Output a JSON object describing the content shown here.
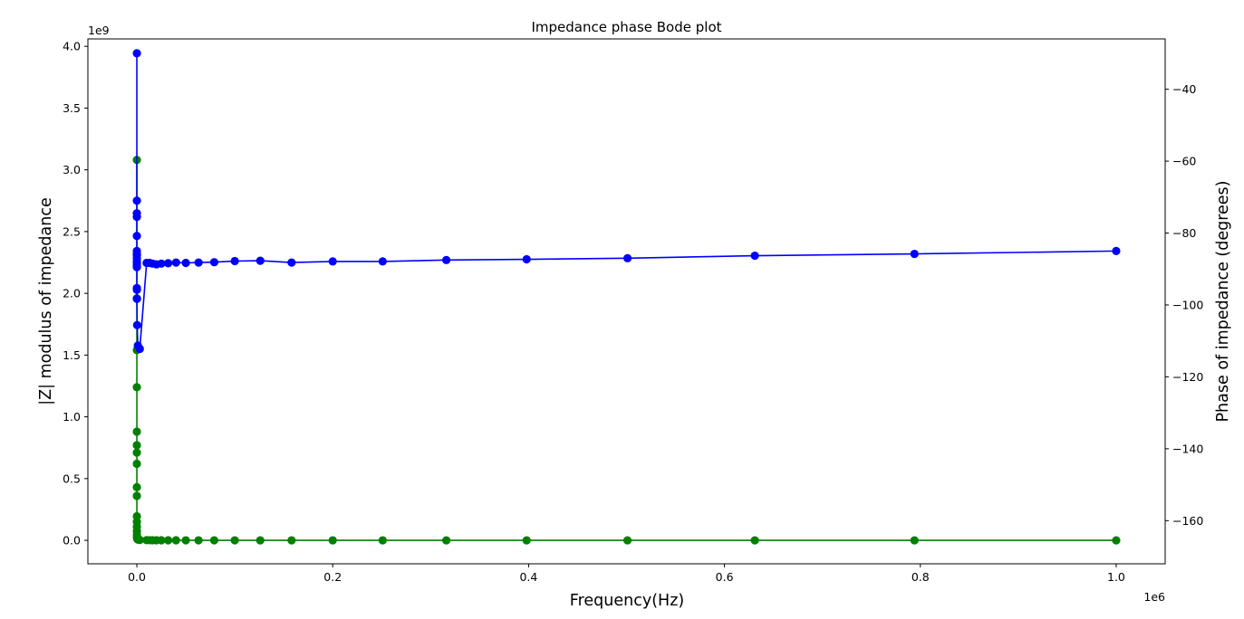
{
  "chart_data": {
    "type": "line",
    "title": "Impedance phase Bode plot",
    "xlabel": "Frequency(Hz)",
    "x_offset_text": "1e6",
    "x_scale": 1000000,
    "xlim": [
      -50000,
      1050000
    ],
    "xticks": [
      0,
      200000,
      400000,
      600000,
      800000,
      1000000
    ],
    "xtick_labels": [
      "0.0",
      "0.2",
      "0.4",
      "0.6",
      "0.8",
      "1.0"
    ],
    "y_left": {
      "label": "|Z| modulus of impedance",
      "offset_text": "1e9",
      "scale": 1000000000,
      "lim": [
        -190000000,
        4060000000
      ],
      "ticks": [
        0,
        500000000,
        1000000000,
        1500000000,
        2000000000,
        2500000000,
        3000000000,
        3500000000,
        4000000000
      ],
      "tick_labels": [
        "0.0",
        "0.5",
        "1.0",
        "1.5",
        "2.0",
        "2.5",
        "3.0",
        "3.5",
        "4.0"
      ]
    },
    "y_right": {
      "label": "Phase of impedance (degrees)",
      "lim": [
        -172,
        -26
      ],
      "ticks": [
        -160,
        -140,
        -120,
        -100,
        -80,
        -60,
        -40
      ],
      "tick_labels": [
        "−160",
        "−140",
        "−120",
        "−100",
        "−80",
        "−60",
        "−40"
      ]
    },
    "grid": false,
    "series": [
      {
        "axis": "left",
        "color": "#008000",
        "marker": "circle",
        "points": [
          [
            1,
            3080000000
          ],
          [
            2,
            1960000000
          ],
          [
            3,
            1540000000
          ],
          [
            4,
            1240000000
          ],
          [
            5,
            880000000
          ],
          [
            6,
            770000000
          ],
          [
            7,
            710000000
          ],
          [
            8,
            620000000
          ],
          [
            9,
            430000000
          ],
          [
            10,
            360000000
          ],
          [
            12,
            195000000
          ],
          [
            15,
            150000000
          ],
          [
            20,
            110000000
          ],
          [
            30,
            75000000
          ],
          [
            50,
            45000000
          ],
          [
            100,
            25000000
          ],
          [
            300,
            12000000
          ],
          [
            1000,
            6000000
          ],
          [
            3000,
            3000000
          ],
          [
            10000,
            1500000
          ],
          [
            13000,
            1000000
          ],
          [
            16000,
            800000
          ],
          [
            20000,
            600000
          ],
          [
            25000,
            500000
          ],
          [
            32000,
            400000
          ],
          [
            40000,
            300000
          ],
          [
            50000,
            250000
          ],
          [
            63000,
            200000
          ],
          [
            79000,
            160000
          ],
          [
            100000,
            130000
          ],
          [
            126000,
            100000
          ],
          [
            158000,
            80000
          ],
          [
            200000,
            64000
          ],
          [
            251000,
            51000
          ],
          [
            316000,
            40000
          ],
          [
            398000,
            32000
          ],
          [
            501000,
            25000
          ],
          [
            631000,
            20000
          ],
          [
            794000,
            16000
          ],
          [
            1000000,
            12600
          ]
        ]
      },
      {
        "axis": "right",
        "color": "#0000ff",
        "marker": "circle",
        "points": [
          [
            1,
            -30
          ],
          [
            2,
            -71
          ],
          [
            3,
            -74.5
          ],
          [
            4,
            -75.5
          ],
          [
            5,
            -80.8
          ],
          [
            6,
            -85
          ],
          [
            7,
            -85.8
          ],
          [
            8,
            -86.2
          ],
          [
            9,
            -87
          ],
          [
            10,
            -87.8
          ],
          [
            12,
            -88.3
          ],
          [
            15,
            -89
          ],
          [
            20,
            -89.5
          ],
          [
            30,
            -95.3
          ],
          [
            50,
            -95.8
          ],
          [
            100,
            -98.3
          ],
          [
            300,
            -105.6
          ],
          [
            1000,
            -111.3
          ],
          [
            3000,
            -112.2
          ],
          [
            10000,
            -88.3
          ],
          [
            13000,
            -88.3
          ],
          [
            16000,
            -88.5
          ],
          [
            20000,
            -88.7
          ],
          [
            25000,
            -88.5
          ],
          [
            32000,
            -88.4
          ],
          [
            40000,
            -88.2
          ],
          [
            50000,
            -88.3
          ],
          [
            63000,
            -88.2
          ],
          [
            79000,
            -88.1
          ],
          [
            100000,
            -87.8
          ],
          [
            126000,
            -87.7
          ],
          [
            158000,
            -88.2
          ],
          [
            200000,
            -87.9
          ],
          [
            251000,
            -87.9
          ],
          [
            316000,
            -87.5
          ],
          [
            398000,
            -87.3
          ],
          [
            501000,
            -87.0
          ],
          [
            631000,
            -86.3
          ],
          [
            794000,
            -85.8
          ],
          [
            1000000,
            -85.0
          ]
        ]
      }
    ]
  }
}
